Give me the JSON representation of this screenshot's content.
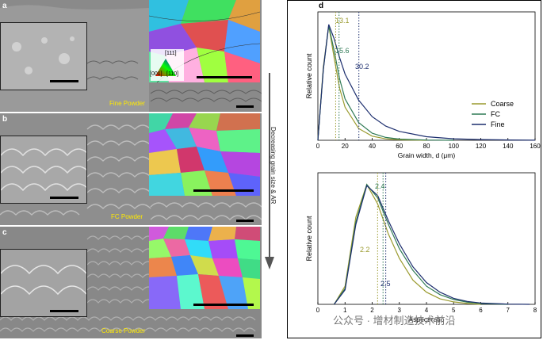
{
  "panels": {
    "a": {
      "letter": "a",
      "label": "Fine Powder"
    },
    "b": {
      "letter": "b",
      "label": "FC Powder"
    },
    "c": {
      "letter": "c",
      "label": "Coarse Powder"
    }
  },
  "ipf_legend": {
    "top": "[111]",
    "left": "[001]",
    "right": "[110]"
  },
  "arrow": {
    "label": "Decreasing grain size & AR"
  },
  "panel_d": {
    "letter": "d"
  },
  "watermark": "公众号 · 增材制造技术前沿",
  "colors": {
    "coarse": "#9a9a2e",
    "fc": "#2f7a55",
    "fine": "#1c2e6e"
  },
  "chart_data": [
    {
      "type": "line",
      "xlabel": "Grain width, d (μm)",
      "ylabel": "Relative count",
      "xlim": [
        0,
        160
      ],
      "xticks": [
        "0",
        "20",
        "40",
        "60",
        "80",
        "100",
        "120",
        "140",
        "160"
      ],
      "legend_placement": "right",
      "series": [
        {
          "name": "Coarse",
          "x": [
            0,
            4,
            8,
            12,
            16,
            20,
            30,
            40,
            50,
            60,
            80
          ],
          "y": [
            0,
            0.62,
            0.97,
            0.7,
            0.44,
            0.28,
            0.1,
            0.035,
            0.012,
            0.004,
            0
          ]
        },
        {
          "name": "FC",
          "x": [
            0,
            4,
            8,
            12,
            16,
            20,
            30,
            40,
            50,
            60,
            80,
            100
          ],
          "y": [
            0,
            0.6,
            0.97,
            0.76,
            0.52,
            0.35,
            0.15,
            0.06,
            0.024,
            0.01,
            0.002,
            0
          ]
        },
        {
          "name": "Fine",
          "x": [
            0,
            4,
            8,
            12,
            16,
            20,
            30,
            40,
            50,
            60,
            80,
            100,
            120,
            140,
            160
          ],
          "y": [
            0,
            0.6,
            0.98,
            0.86,
            0.7,
            0.56,
            0.34,
            0.2,
            0.12,
            0.075,
            0.03,
            0.013,
            0.006,
            0.003,
            0.001
          ]
        }
      ],
      "annotations": [
        {
          "text": "13.1",
          "x": 13.1,
          "series": "Coarse"
        },
        {
          "text": "15.6",
          "x": 15.6,
          "series": "FC"
        },
        {
          "text": "30.2",
          "x": 30.2,
          "series": "Fine"
        }
      ]
    },
    {
      "type": "line",
      "xlabel": "Aspect ratio",
      "ylabel": "Relative count",
      "xlim": [
        0,
        8
      ],
      "xticks": [
        "0",
        "1",
        "2",
        "3",
        "4",
        "5",
        "6",
        "7",
        "8"
      ],
      "series": [
        {
          "name": "Coarse",
          "x": [
            0.6,
            1,
            1.4,
            1.8,
            2.2,
            2.6,
            3,
            3.5,
            4,
            4.5,
            5,
            5.5,
            6
          ],
          "y": [
            0,
            0.15,
            0.72,
            0.99,
            0.83,
            0.58,
            0.38,
            0.2,
            0.1,
            0.045,
            0.02,
            0.007,
            0
          ]
        },
        {
          "name": "FC",
          "x": [
            0.6,
            1,
            1.4,
            1.8,
            2.2,
            2.6,
            3,
            3.5,
            4,
            4.5,
            5,
            5.5,
            6,
            7
          ],
          "y": [
            0,
            0.13,
            0.68,
            0.99,
            0.88,
            0.66,
            0.46,
            0.28,
            0.15,
            0.08,
            0.04,
            0.018,
            0.007,
            0
          ]
        },
        {
          "name": "Fine",
          "x": [
            0.6,
            1,
            1.4,
            1.8,
            2.2,
            2.6,
            3,
            3.5,
            4,
            4.5,
            5,
            5.5,
            6,
            7,
            7.8
          ],
          "y": [
            0,
            0.12,
            0.66,
            0.98,
            0.9,
            0.69,
            0.5,
            0.31,
            0.18,
            0.1,
            0.05,
            0.024,
            0.011,
            0.002,
            0
          ]
        }
      ],
      "annotations": [
        {
          "text": "2.2",
          "x": 2.2,
          "series": "Coarse"
        },
        {
          "text": "2.4",
          "x": 2.4,
          "series": "FC"
        },
        {
          "text": "2.5",
          "x": 2.5,
          "series": "Fine"
        }
      ]
    }
  ]
}
